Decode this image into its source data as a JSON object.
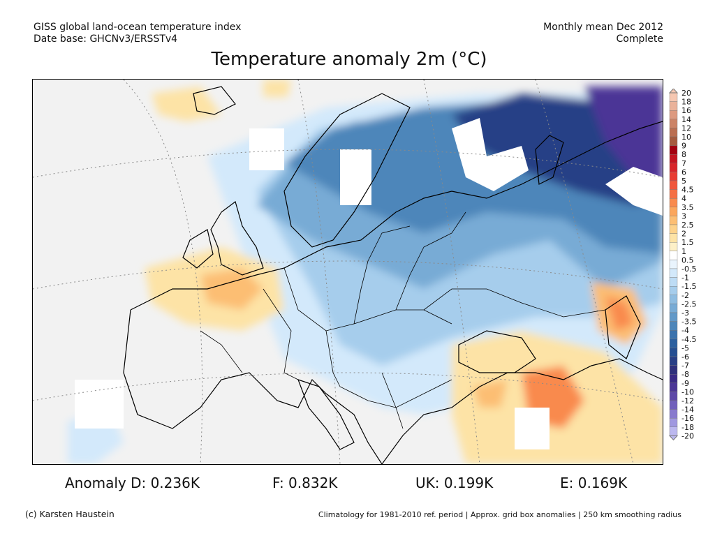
{
  "header": {
    "line1_left": "GISS global land-ocean temperature index",
    "line2_left": "Date base: GHCNv3/ERSSTv4",
    "line1_right": "Monthly mean Dec 2012",
    "line2_right": "Complete"
  },
  "title": "Temperature anomaly 2m (°C)",
  "legend": {
    "labels": [
      "20",
      "18",
      "16",
      "14",
      "12",
      "10",
      "9",
      "8",
      "7",
      "6",
      "5",
      "4.5",
      "4",
      "3.5",
      "3",
      "2.5",
      "2",
      "1.5",
      "1",
      "0.5",
      "-0.5",
      "-1",
      "-1.5",
      "-2",
      "-2.5",
      "-3",
      "-3.5",
      "-4",
      "-4.5",
      "-5",
      "-6",
      "-7",
      "-8",
      "-9",
      "-10",
      "-12",
      "-14",
      "-16",
      "-18",
      "-20"
    ],
    "colors": [
      "#f6c7b1",
      "#eab29a",
      "#dd9a80",
      "#cc8366",
      "#bb6e51",
      "#a55a3e",
      "#a3000f",
      "#c41420",
      "#d8252a",
      "#e83c33",
      "#f0563c",
      "#f57044",
      "#f98a4d",
      "#fba65c",
      "#fcbe73",
      "#fdd28b",
      "#fde3a6",
      "#fdf0c8",
      "#ffffff",
      "#e9f4fd",
      "#d3e9fb",
      "#bddcf5",
      "#a6cdec",
      "#8fbde1",
      "#78abd5",
      "#6299c8",
      "#4d86ba",
      "#3b73ad",
      "#2c609f",
      "#254f92",
      "#283f86",
      "#2f307c",
      "#3a2a86",
      "#4b3696",
      "#5d48a8",
      "#7160bb",
      "#887ace",
      "#a098e0",
      "#bcb8ef"
    ]
  },
  "anomalies": {
    "d": "Anomaly D: 0.236K",
    "f": "F: 0.832K",
    "uk": "UK: 0.199K",
    "e": "E: 0.169K"
  },
  "footer": {
    "left": "(c) Karsten Haustein",
    "right": "Climatology for 1981-2010 ref. period | Approx. grid box anomalies | 250 km smoothing radius"
  },
  "colors": {
    "warm_light": "#fde3a6",
    "warm": "#fcbe73",
    "warm_strong": "#f98a4d",
    "cool_light": "#d3e9fb",
    "cool": "#a6cdec",
    "cool_mid": "#78abd5",
    "cold": "#4d86ba",
    "very_cold": "#283f86",
    "extreme_cold": "#4b3696",
    "no_data": "#ffffff",
    "neutral": "#f2f2f2"
  }
}
